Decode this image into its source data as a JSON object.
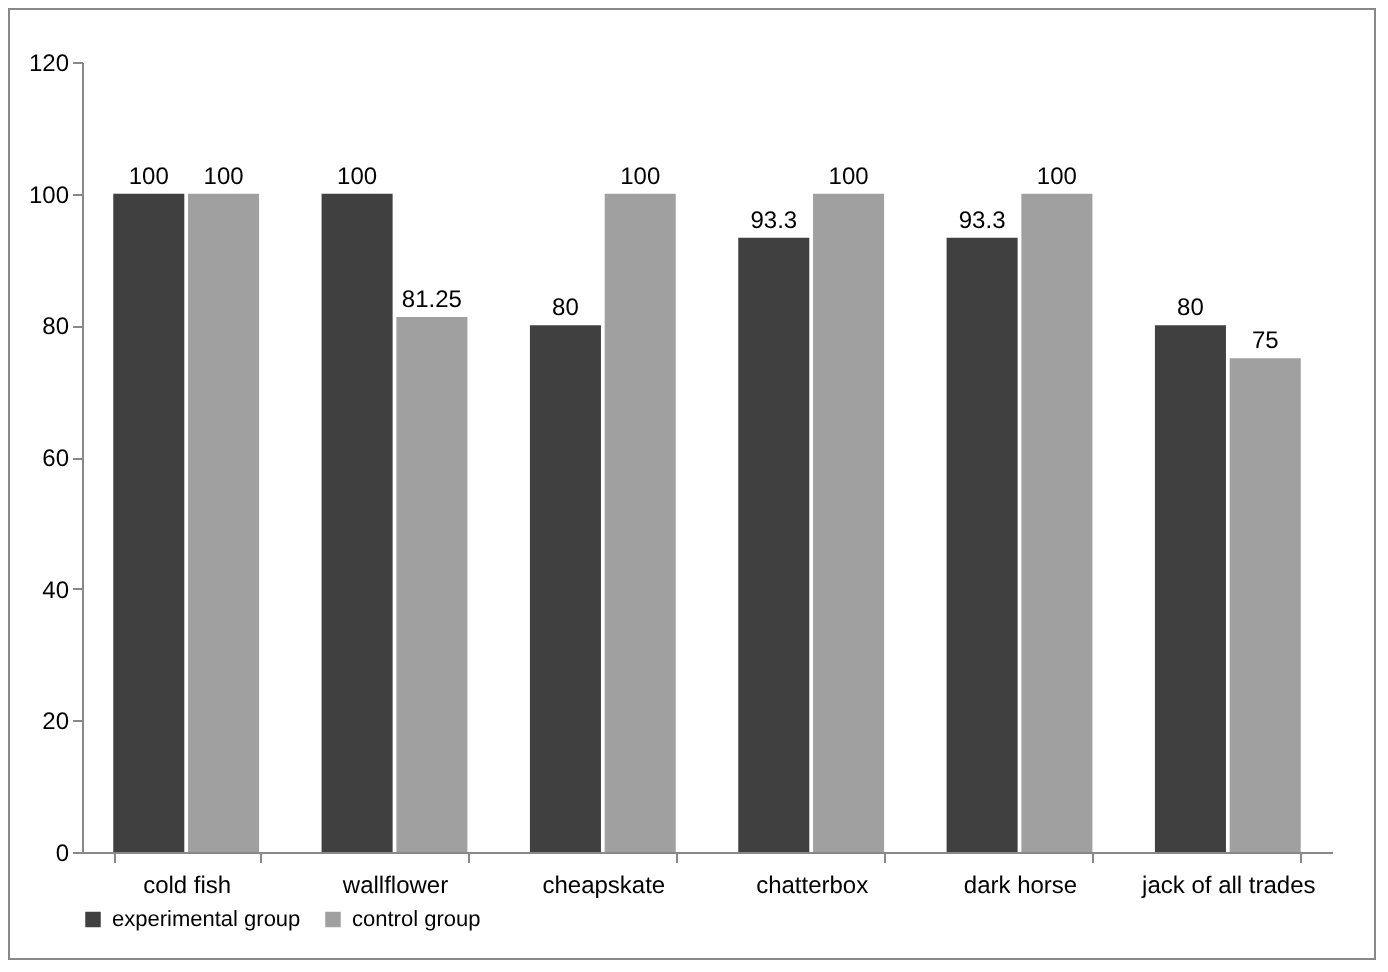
{
  "chart_data": {
    "type": "bar",
    "categories": [
      "cold fish",
      "wallflower",
      "cheapskate",
      "chatterbox",
      "dark horse",
      "jack of all trades"
    ],
    "series": [
      {
        "name": "experimental group",
        "color": "#404040",
        "values": [
          100,
          100,
          80,
          93.3,
          93.3,
          80
        ]
      },
      {
        "name": "control group",
        "color": "#a0a0a0",
        "values": [
          100,
          81.25,
          100,
          100,
          100,
          75
        ]
      }
    ],
    "ylim": [
      0,
      120
    ],
    "yticks": [
      0,
      20,
      40,
      60,
      80,
      100,
      120
    ],
    "grid": false,
    "legend": "bottom",
    "data_labels": true
  }
}
